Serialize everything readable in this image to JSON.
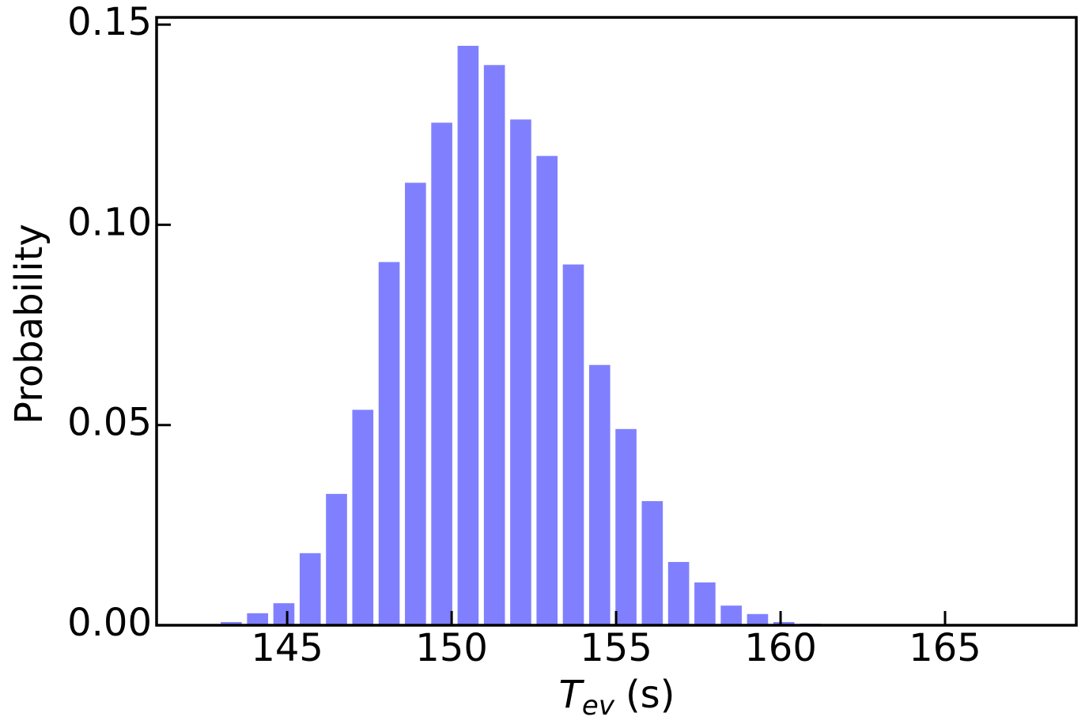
{
  "chart_data": {
    "type": "histogram",
    "xlabel": {
      "symbol": "T",
      "subscript": "ev",
      "unit": "(s)"
    },
    "ylabel": "Probability",
    "bins": [
      142.9,
      143.7,
      144.5,
      145.3,
      146.1,
      146.9,
      147.7,
      148.5,
      149.3,
      150.1,
      150.9,
      151.7,
      152.5,
      153.3,
      154.1,
      154.9,
      155.7,
      156.5,
      157.3,
      158.1,
      158.9,
      159.7,
      160.5,
      161.3
    ],
    "values": [
      0.0008,
      0.003,
      0.0055,
      0.018,
      0.0328,
      0.0538,
      0.0907,
      0.1105,
      0.1255,
      0.1447,
      0.1399,
      0.1263,
      0.1172,
      0.0901,
      0.065,
      0.049,
      0.031,
      0.0158,
      0.0107,
      0.0049,
      0.0028,
      0.0008,
      0.0004
    ],
    "color": "#8080ff",
    "xlim": [
      141.03,
      168.99
    ],
    "ylim": [
      0,
      0.1518
    ],
    "xticks": [
      145,
      150,
      155,
      160,
      165
    ],
    "yticks": [
      {
        "value": 0,
        "label": "0.00"
      },
      {
        "value": 0.05,
        "label": "0.05"
      },
      {
        "value": 0.1,
        "label": "0.10"
      },
      {
        "value": 0.15,
        "label": "0.15"
      }
    ],
    "grid": false
  }
}
